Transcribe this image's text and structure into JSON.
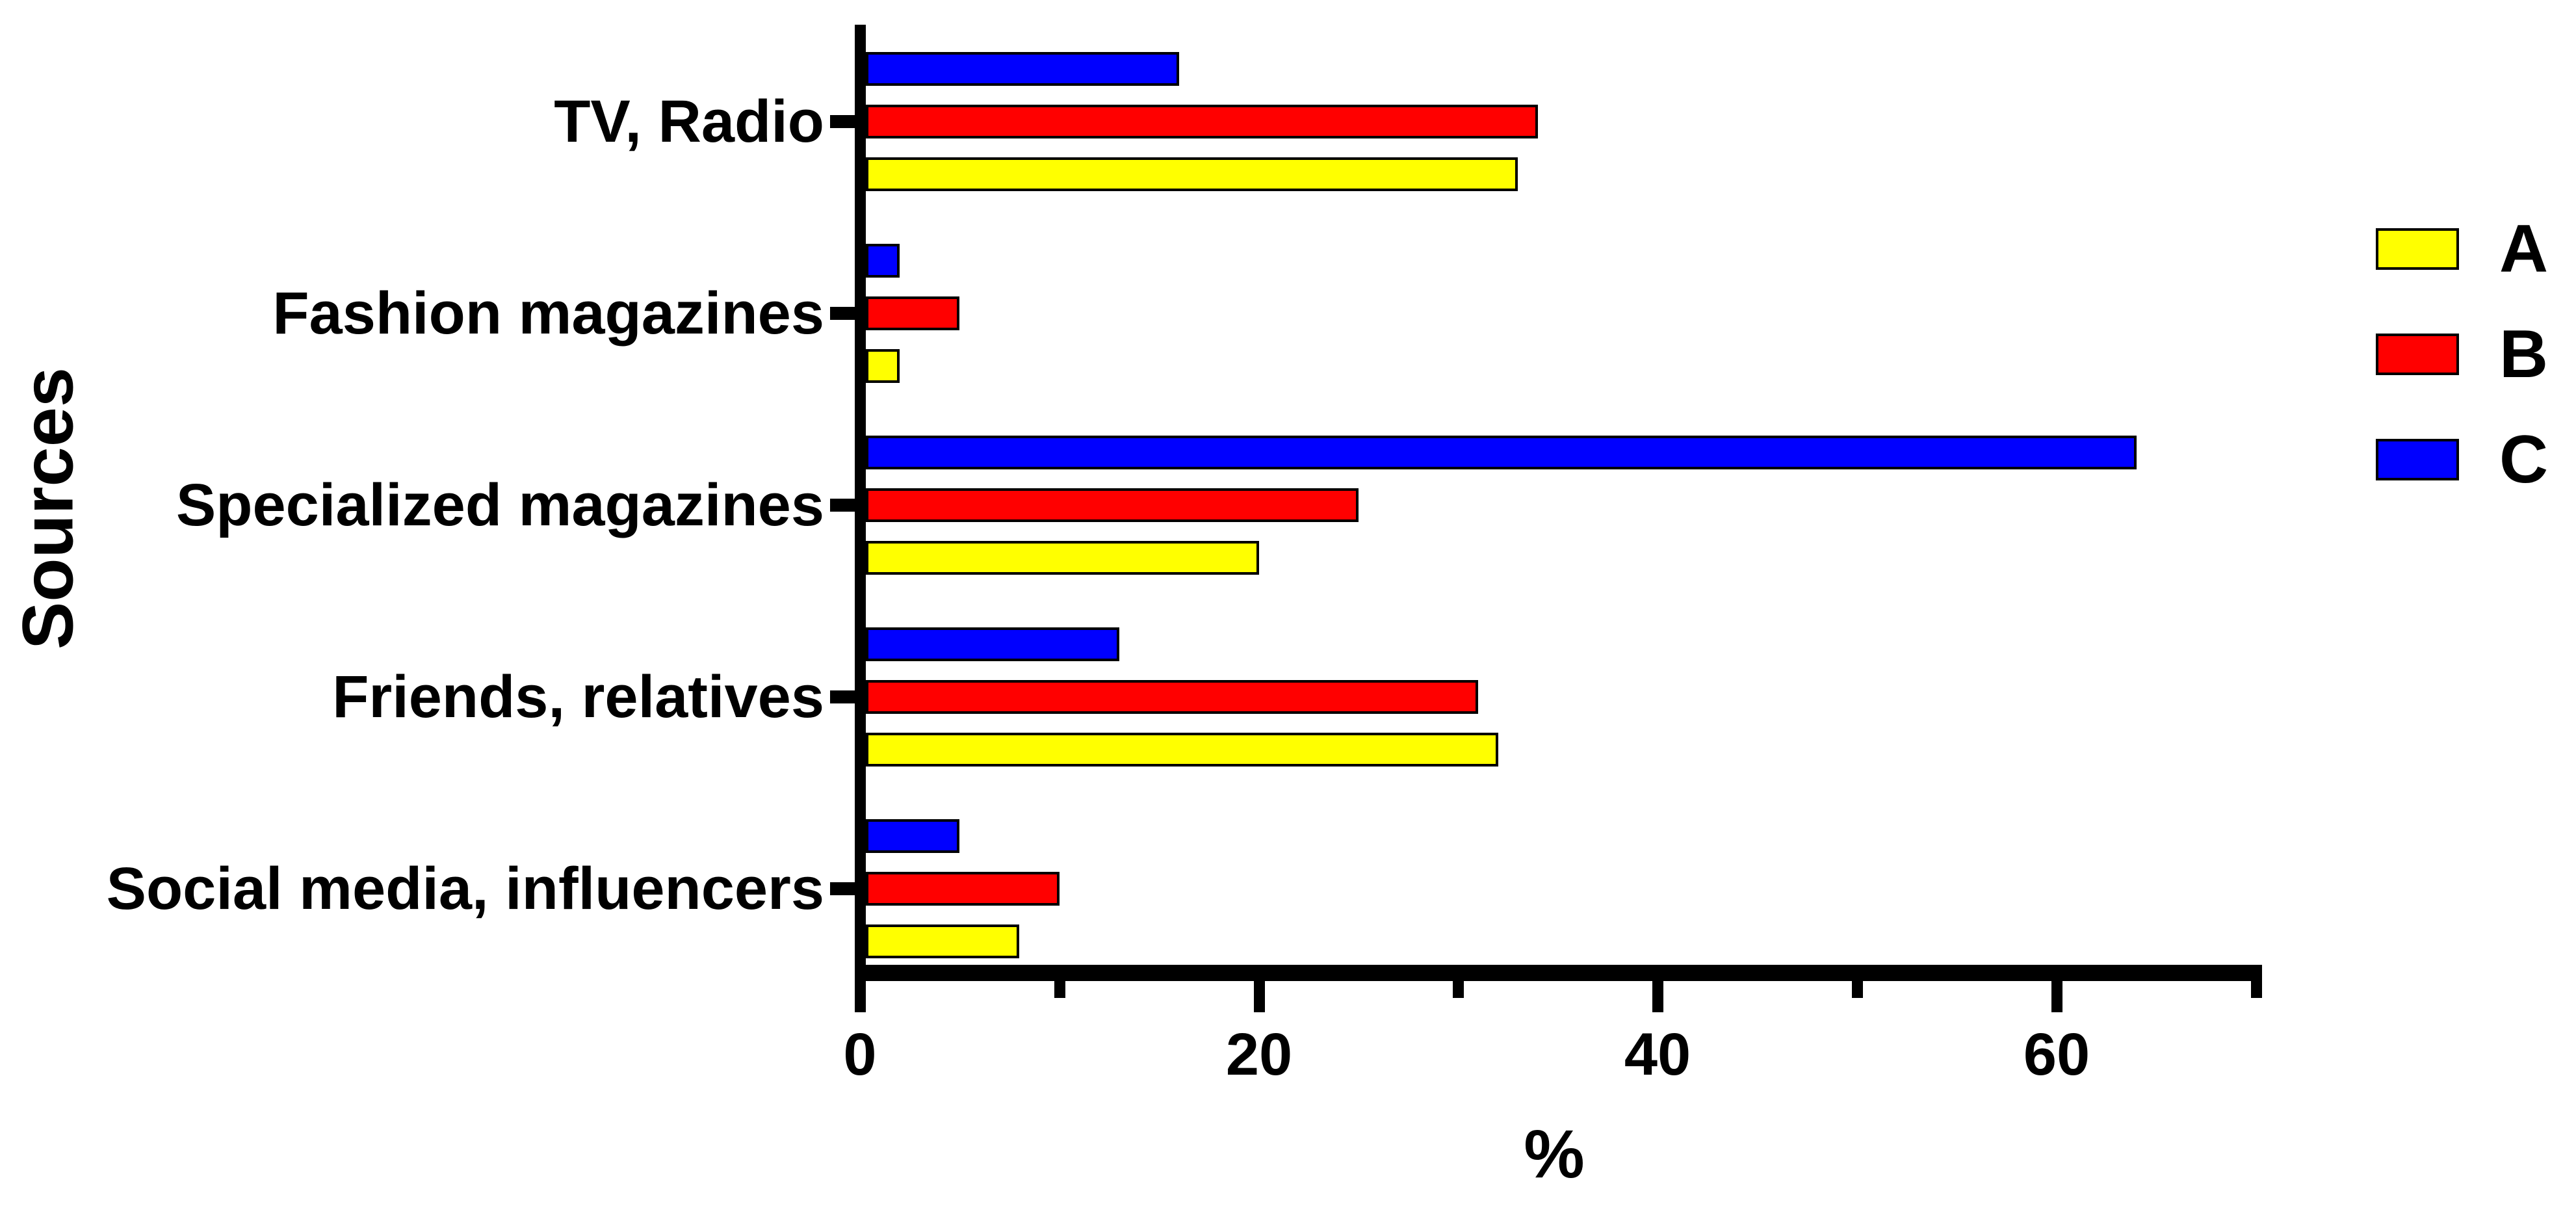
{
  "chart_data": {
    "type": "bar",
    "orientation": "horizontal",
    "title": "",
    "xlabel": "%",
    "ylabel": "Sources",
    "categories": [
      "TV, Radio",
      "Fashion magazines",
      "Specialized magazines",
      "Friends, relatives",
      "Social media, influencers"
    ],
    "series": [
      {
        "name": "A",
        "color": "#FFFF00",
        "values": [
          33,
          2,
          20,
          32,
          8
        ]
      },
      {
        "name": "B",
        "color": "#FF0000",
        "values": [
          34,
          5,
          25,
          31,
          10
        ]
      },
      {
        "name": "C",
        "color": "#0000FF",
        "values": [
          16,
          2,
          64,
          13,
          5
        ]
      }
    ],
    "xlim": [
      0,
      70
    ],
    "xticks_major": [
      0,
      20,
      40,
      60
    ],
    "xticks_minor": [
      10,
      30,
      50,
      70
    ],
    "legend_position": "right",
    "grid": false,
    "axis_color": "#000000",
    "bar_outline_color": "#000000"
  }
}
